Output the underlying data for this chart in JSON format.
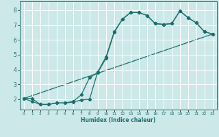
{
  "xlabel": "Humidex (Indice chaleur)",
  "bg_color": "#cce8e8",
  "grid_color": "#ffffff",
  "line_color": "#1a6e6e",
  "xlim": [
    -0.5,
    23.5
  ],
  "ylim": [
    1.3,
    8.6
  ],
  "yticks": [
    2,
    3,
    4,
    5,
    6,
    7,
    8
  ],
  "xticks": [
    0,
    1,
    2,
    3,
    4,
    5,
    6,
    7,
    8,
    9,
    10,
    11,
    12,
    13,
    14,
    15,
    16,
    17,
    18,
    19,
    20,
    21,
    22,
    23
  ],
  "line1_x": [
    0,
    1,
    2,
    3,
    4,
    5,
    6,
    7,
    8,
    9,
    10,
    11,
    12,
    13,
    14,
    15,
    16,
    17,
    18,
    19,
    20,
    21,
    22,
    23
  ],
  "line1_y": [
    2.05,
    1.85,
    1.65,
    1.65,
    1.75,
    1.75,
    1.8,
    1.95,
    2.0,
    3.85,
    4.85,
    6.55,
    7.4,
    7.85,
    7.85,
    7.65,
    7.1,
    7.05,
    7.1,
    7.95,
    7.5,
    7.15,
    6.55,
    6.4
  ],
  "line2_x": [
    0,
    1,
    2,
    3,
    4,
    5,
    6,
    7,
    8,
    9,
    10,
    11,
    12,
    13,
    14,
    15,
    16,
    17,
    18,
    19,
    20,
    21,
    22,
    23
  ],
  "line2_y": [
    2.05,
    2.05,
    1.65,
    1.65,
    1.75,
    1.75,
    1.85,
    2.3,
    3.45,
    3.8,
    4.75,
    6.5,
    7.4,
    7.85,
    7.85,
    7.65,
    7.1,
    7.05,
    7.1,
    7.95,
    7.5,
    7.15,
    6.55,
    6.4
  ],
  "line3_x": [
    0,
    23
  ],
  "line3_y": [
    2.05,
    6.4
  ]
}
